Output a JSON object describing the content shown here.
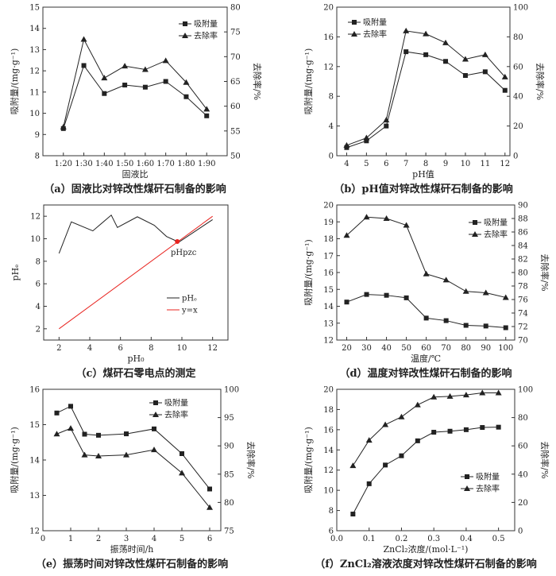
{
  "chart_data": [
    {
      "id": "a",
      "type": "line",
      "caption": "（a）固液比对锌改性煤矸石制备的影响",
      "xlabel": "固液比",
      "ylabel": "吸附量/(mg·g⁻¹)",
      "y2label": "去除率/%",
      "categories": [
        "1:20",
        "1:30",
        "1:40",
        "1:50",
        "1:60",
        "1:70",
        "1:80",
        "1:90"
      ],
      "ylim": [
        8,
        15
      ],
      "yticks": [
        8,
        9,
        10,
        11,
        12,
        13,
        14,
        15
      ],
      "y2lim": [
        50,
        80
      ],
      "y2ticks": [
        50,
        55,
        60,
        65,
        70,
        75,
        80
      ],
      "legend": "top-right",
      "grid": false,
      "series": [
        {
          "name": "吸附量",
          "axis": "left",
          "marker": "square",
          "values": [
            9.28,
            12.25,
            10.93,
            11.33,
            11.23,
            11.5,
            10.78,
            9.88
          ]
        },
        {
          "name": "去除率",
          "axis": "right",
          "marker": "triangle",
          "values": [
            55.8,
            73.5,
            65.7,
            68.1,
            67.4,
            69.2,
            64.8,
            59.4
          ]
        }
      ]
    },
    {
      "id": "b",
      "type": "line",
      "caption": "（b）pH值对锌改性煤矸石制备的影响",
      "xlabel": "pH值",
      "ylabel": "吸附量/(mg·g⁻¹)",
      "y2label": "去除率/%",
      "x": [
        4,
        5,
        6,
        7,
        8,
        9,
        10,
        11,
        12
      ],
      "xticks": [
        4,
        5,
        6,
        7,
        8,
        9,
        10,
        11,
        12
      ],
      "xlim": [
        3.5,
        12.25
      ],
      "ylim": [
        0,
        20
      ],
      "yticks": [
        0,
        4,
        8,
        12,
        16,
        20
      ],
      "y2lim": [
        0,
        100
      ],
      "y2ticks": [
        0,
        20,
        40,
        60,
        80,
        100
      ],
      "legend": "top-left",
      "grid": false,
      "series": [
        {
          "name": "吸附量",
          "axis": "left",
          "marker": "square",
          "values": [
            1.1,
            2.0,
            4.0,
            14.0,
            13.6,
            12.7,
            10.8,
            11.3,
            8.8
          ]
        },
        {
          "name": "去除率",
          "axis": "right",
          "marker": "triangle",
          "values": [
            7,
            12,
            24,
            84,
            82,
            76,
            65,
            68,
            53
          ]
        }
      ]
    },
    {
      "id": "c",
      "type": "line",
      "caption": "（c）煤矸石零电点的测定",
      "xlabel": "pH₀",
      "ylabel": "pHₑ",
      "xlim": [
        1,
        13
      ],
      "xticks": [
        2,
        4,
        6,
        8,
        10,
        12
      ],
      "ylim": [
        1,
        13
      ],
      "yticks": [
        2,
        4,
        6,
        8,
        10,
        12
      ],
      "legend": "bottom-right",
      "grid": false,
      "annotation": {
        "text": "pHpzc",
        "x": 9.7,
        "y": 9.75,
        "color": "#e8231f"
      },
      "series": [
        {
          "name": "pHₑ",
          "color": "#222222",
          "x": [
            2,
            2.8,
            4.2,
            5.4,
            5.8,
            7.1,
            8.2,
            9.0,
            9.8,
            12
          ],
          "values": [
            8.7,
            11.5,
            10.7,
            12.1,
            11.0,
            11.95,
            11.2,
            10.2,
            9.7,
            11.7
          ]
        },
        {
          "name": "y=x",
          "color": "#e8231f",
          "x": [
            2,
            12
          ],
          "values": [
            2,
            12
          ]
        }
      ]
    },
    {
      "id": "d",
      "type": "line",
      "caption": "（d）温度对锌改性煤矸石制备的影响",
      "xlabel": "温度/℃",
      "ylabel": "吸附量/(mg·g⁻¹)",
      "y2label": "去除率/%",
      "x": [
        20,
        30,
        40,
        50,
        60,
        70,
        80,
        90,
        100
      ],
      "xticks": [
        20,
        30,
        40,
        50,
        60,
        70,
        80,
        90,
        100
      ],
      "xlim": [
        15,
        104.5
      ],
      "ylim": [
        12,
        20
      ],
      "yticks": [
        12,
        13,
        14,
        15,
        16,
        17,
        18,
        19,
        20
      ],
      "y2lim": [
        70,
        90
      ],
      "y2ticks": [
        70,
        72,
        74,
        76,
        78,
        80,
        82,
        84,
        86,
        88,
        90
      ],
      "legend": "top-right",
      "grid": false,
      "series": [
        {
          "name": "吸附量",
          "axis": "left",
          "marker": "square",
          "values": [
            14.25,
            14.7,
            14.65,
            14.5,
            13.3,
            13.15,
            12.87,
            12.83,
            12.73
          ]
        },
        {
          "name": "去除率",
          "axis": "right",
          "marker": "triangle",
          "values": [
            85.5,
            88.2,
            88.0,
            87.0,
            79.8,
            78.9,
            77.2,
            77.0,
            76.3
          ]
        }
      ]
    },
    {
      "id": "e",
      "type": "line",
      "caption": "（e）振荡时间对锌改性煤矸石制备的影响",
      "xlabel": "振荡时间/h",
      "ylabel": "吸附量/(mg·g⁻¹)",
      "y2label": "去除率/%",
      "x": [
        0.5,
        1,
        1.5,
        2,
        3,
        4,
        5,
        6
      ],
      "xticks": [
        0,
        1,
        2,
        3,
        4,
        5,
        6
      ],
      "xlim": [
        0,
        6.4
      ],
      "ylim": [
        12,
        16
      ],
      "yticks": [
        12,
        13,
        14,
        15,
        16
      ],
      "y2lim": [
        75,
        100
      ],
      "y2ticks": [
        75,
        80,
        85,
        90,
        95,
        100
      ],
      "legend": "top-right",
      "grid": false,
      "series": [
        {
          "name": "吸附量",
          "axis": "left",
          "marker": "square",
          "values": [
            15.33,
            15.52,
            14.73,
            14.7,
            14.74,
            14.88,
            14.18,
            13.18
          ]
        },
        {
          "name": "去除率",
          "axis": "right",
          "marker": "triangle",
          "values": [
            92.1,
            93.1,
            88.4,
            88.2,
            88.4,
            89.3,
            85.2,
            79.1
          ]
        }
      ]
    },
    {
      "id": "f",
      "type": "line",
      "caption": "（f）ZnCl₂溶液浓度对锌改性煤矸石制备的影响",
      "xlabel": "ZnCl₂浓度/(mol·L⁻¹)",
      "ylabel": "吸附量/(mg·g⁻¹)",
      "y2label": "去除率/%",
      "x": [
        0.05,
        0.1,
        0.15,
        0.2,
        0.25,
        0.3,
        0.35,
        0.4,
        0.45,
        0.5
      ],
      "xticks": [
        "0.0",
        "0.1",
        "0.2",
        "0.3",
        "0.4",
        "0.5"
      ],
      "xlim": [
        0,
        0.55
      ],
      "ylim": [
        6,
        20
      ],
      "yticks": [
        6,
        8,
        10,
        12,
        14,
        16,
        18,
        20
      ],
      "y2lim": [
        0,
        100
      ],
      "y2ticks": [
        0,
        20,
        40,
        60,
        80,
        100
      ],
      "legend": "center-right",
      "grid": false,
      "series": [
        {
          "name": "吸附量",
          "axis": "left",
          "marker": "square",
          "values": [
            7.65,
            10.65,
            12.5,
            13.42,
            14.9,
            15.75,
            15.85,
            16.0,
            16.22,
            16.25
          ]
        },
        {
          "name": "去除率",
          "axis": "right",
          "marker": "triangle",
          "values": [
            46,
            64,
            75,
            80.5,
            89,
            94.5,
            95,
            96,
            97.5,
            97.5
          ]
        }
      ]
    }
  ]
}
